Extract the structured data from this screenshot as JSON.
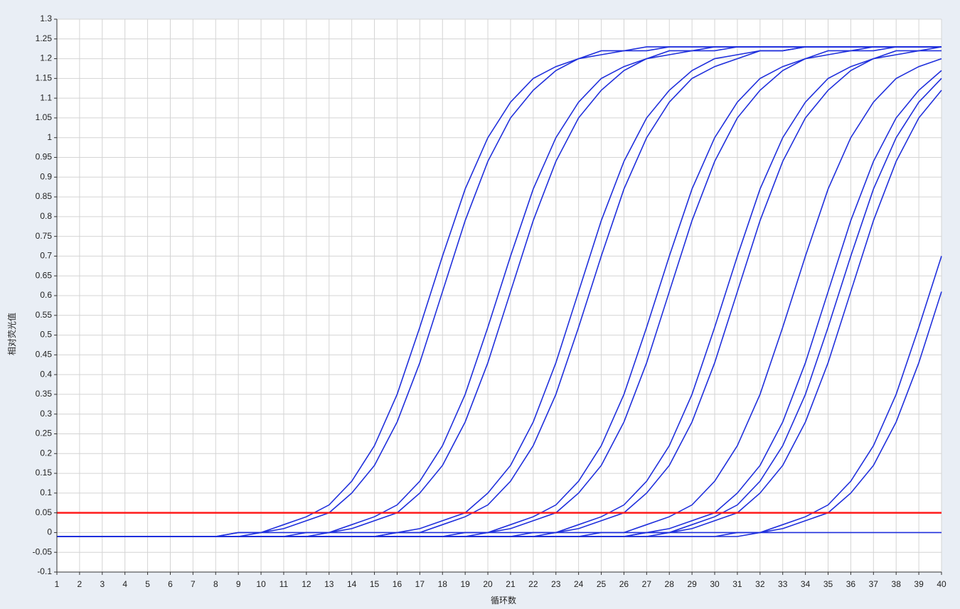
{
  "chart_data": {
    "type": "line",
    "xlabel": "循环数",
    "ylabel": "相对荧光值",
    "color": "#1f2fdc",
    "threshold": {
      "value": 0.05,
      "color": "#ff1a1a"
    },
    "grid": true,
    "xlim": [
      1,
      40
    ],
    "ylim": [
      -0.1,
      1.3
    ],
    "xticks": [
      1,
      2,
      3,
      4,
      5,
      6,
      7,
      8,
      9,
      10,
      11,
      12,
      13,
      14,
      15,
      16,
      17,
      18,
      19,
      20,
      21,
      22,
      23,
      24,
      25,
      26,
      27,
      28,
      29,
      30,
      31,
      32,
      33,
      34,
      35,
      36,
      37,
      38,
      39,
      40
    ],
    "yticks": [
      -0.1,
      -0.05,
      0,
      0.05,
      0.1,
      0.15,
      0.2,
      0.25,
      0.3,
      0.35,
      0.4,
      0.45,
      0.5,
      0.55,
      0.6,
      0.65,
      0.7,
      0.75,
      0.8,
      0.85,
      0.9,
      0.95,
      1,
      1.05,
      1.1,
      1.15,
      1.2,
      1.25,
      1.3
    ],
    "x": [
      1,
      2,
      3,
      4,
      5,
      6,
      7,
      8,
      9,
      10,
      11,
      12,
      13,
      14,
      15,
      16,
      17,
      18,
      19,
      20,
      21,
      22,
      23,
      24,
      25,
      26,
      27,
      28,
      29,
      30,
      31,
      32,
      33,
      34,
      35,
      36,
      37,
      38,
      39,
      40
    ],
    "series": [
      {
        "values": [
          -0.01,
          -0.01,
          -0.01,
          -0.01,
          -0.01,
          -0.01,
          -0.01,
          -0.01,
          0,
          0,
          0.02,
          0.04,
          0.07,
          0.13,
          0.22,
          0.35,
          0.52,
          0.7,
          0.87,
          1.0,
          1.09,
          1.15,
          1.18,
          1.2,
          1.22,
          1.22,
          1.23,
          1.23,
          1.23,
          1.23,
          1.23,
          1.23,
          1.23,
          1.23,
          1.23,
          1.23,
          1.23,
          1.23,
          1.23,
          1.23
        ]
      },
      {
        "values": [
          -0.01,
          -0.01,
          -0.01,
          -0.01,
          -0.01,
          -0.01,
          -0.01,
          -0.01,
          -0.01,
          0,
          0.01,
          0.03,
          0.05,
          0.1,
          0.17,
          0.28,
          0.43,
          0.61,
          0.79,
          0.94,
          1.05,
          1.12,
          1.17,
          1.2,
          1.21,
          1.22,
          1.22,
          1.23,
          1.23,
          1.23,
          1.23,
          1.23,
          1.23,
          1.23,
          1.23,
          1.23,
          1.23,
          1.23,
          1.23,
          1.23
        ]
      },
      {
        "values": [
          -0.01,
          -0.01,
          -0.01,
          -0.01,
          -0.01,
          -0.01,
          -0.01,
          -0.01,
          -0.01,
          -0.01,
          -0.01,
          0,
          0,
          0.02,
          0.04,
          0.07,
          0.13,
          0.22,
          0.35,
          0.52,
          0.7,
          0.87,
          1.0,
          1.09,
          1.15,
          1.18,
          1.2,
          1.22,
          1.22,
          1.23,
          1.23,
          1.23,
          1.23,
          1.23,
          1.23,
          1.23,
          1.23,
          1.23,
          1.23,
          1.23
        ]
      },
      {
        "values": [
          -0.01,
          -0.01,
          -0.01,
          -0.01,
          -0.01,
          -0.01,
          -0.01,
          -0.01,
          -0.01,
          -0.01,
          -0.01,
          -0.01,
          0,
          0.01,
          0.03,
          0.05,
          0.1,
          0.17,
          0.28,
          0.43,
          0.61,
          0.79,
          0.94,
          1.05,
          1.12,
          1.17,
          1.2,
          1.21,
          1.22,
          1.22,
          1.23,
          1.23,
          1.23,
          1.23,
          1.23,
          1.23,
          1.23,
          1.23,
          1.23,
          1.23
        ]
      },
      {
        "values": [
          -0.01,
          -0.01,
          -0.01,
          -0.01,
          -0.01,
          -0.01,
          -0.01,
          -0.01,
          -0.01,
          -0.01,
          -0.01,
          -0.01,
          -0.01,
          -0.01,
          -0.01,
          0,
          0.01,
          0.03,
          0.05,
          0.1,
          0.17,
          0.28,
          0.43,
          0.61,
          0.79,
          0.94,
          1.05,
          1.12,
          1.17,
          1.2,
          1.21,
          1.22,
          1.22,
          1.23,
          1.23,
          1.23,
          1.23,
          1.23,
          1.23,
          1.23
        ]
      },
      {
        "values": [
          -0.01,
          -0.01,
          -0.01,
          -0.01,
          -0.01,
          -0.01,
          -0.01,
          -0.01,
          -0.01,
          -0.01,
          -0.01,
          -0.01,
          -0.01,
          -0.01,
          -0.01,
          0,
          0,
          0.02,
          0.04,
          0.07,
          0.13,
          0.22,
          0.35,
          0.52,
          0.7,
          0.87,
          1.0,
          1.09,
          1.15,
          1.18,
          1.2,
          1.22,
          1.22,
          1.23,
          1.23,
          1.23,
          1.23,
          1.23,
          1.23,
          1.23
        ]
      },
      {
        "values": [
          -0.01,
          -0.01,
          -0.01,
          -0.01,
          -0.01,
          -0.01,
          -0.01,
          -0.01,
          -0.01,
          -0.01,
          -0.01,
          -0.01,
          -0.01,
          -0.01,
          -0.01,
          -0.01,
          -0.01,
          -0.01,
          0,
          0,
          0.02,
          0.04,
          0.07,
          0.13,
          0.22,
          0.35,
          0.52,
          0.7,
          0.87,
          1.0,
          1.09,
          1.15,
          1.18,
          1.2,
          1.22,
          1.22,
          1.23,
          1.23,
          1.23,
          1.23
        ]
      },
      {
        "values": [
          -0.01,
          -0.01,
          -0.01,
          -0.01,
          -0.01,
          -0.01,
          -0.01,
          -0.01,
          -0.01,
          -0.01,
          -0.01,
          -0.01,
          -0.01,
          -0.01,
          -0.01,
          -0.01,
          -0.01,
          -0.01,
          -0.01,
          0,
          0.01,
          0.03,
          0.05,
          0.1,
          0.17,
          0.28,
          0.43,
          0.61,
          0.79,
          0.94,
          1.05,
          1.12,
          1.17,
          1.2,
          1.21,
          1.22,
          1.22,
          1.23,
          1.23,
          1.23
        ]
      },
      {
        "values": [
          -0.01,
          -0.01,
          -0.01,
          -0.01,
          -0.01,
          -0.01,
          -0.01,
          -0.01,
          -0.01,
          -0.01,
          -0.01,
          -0.01,
          -0.01,
          -0.01,
          -0.01,
          -0.01,
          -0.01,
          -0.01,
          -0.01,
          -0.01,
          -0.01,
          0,
          0,
          0.02,
          0.04,
          0.07,
          0.13,
          0.22,
          0.35,
          0.52,
          0.7,
          0.87,
          1.0,
          1.09,
          1.15,
          1.18,
          1.2,
          1.22,
          1.22,
          1.23
        ]
      },
      {
        "values": [
          -0.01,
          -0.01,
          -0.01,
          -0.01,
          -0.01,
          -0.01,
          -0.01,
          -0.01,
          -0.01,
          -0.01,
          -0.01,
          -0.01,
          -0.01,
          -0.01,
          -0.01,
          -0.01,
          -0.01,
          -0.01,
          -0.01,
          -0.01,
          -0.01,
          -0.01,
          0,
          0.01,
          0.03,
          0.05,
          0.1,
          0.17,
          0.28,
          0.43,
          0.61,
          0.79,
          0.94,
          1.05,
          1.12,
          1.17,
          1.2,
          1.21,
          1.22,
          1.22
        ]
      },
      {
        "values": [
          -0.01,
          -0.01,
          -0.01,
          -0.01,
          -0.01,
          -0.01,
          -0.01,
          -0.01,
          -0.01,
          -0.01,
          -0.01,
          -0.01,
          -0.01,
          -0.01,
          -0.01,
          -0.01,
          -0.01,
          -0.01,
          -0.01,
          -0.01,
          -0.01,
          -0.01,
          -0.01,
          -0.01,
          0,
          0,
          0.02,
          0.04,
          0.07,
          0.13,
          0.22,
          0.35,
          0.52,
          0.7,
          0.87,
          1.0,
          1.09,
          1.15,
          1.18,
          1.2
        ]
      },
      {
        "values": [
          -0.01,
          -0.01,
          -0.01,
          -0.01,
          -0.01,
          -0.01,
          -0.01,
          -0.01,
          -0.01,
          -0.01,
          -0.01,
          -0.01,
          -0.01,
          -0.01,
          -0.01,
          -0.01,
          -0.01,
          -0.01,
          -0.01,
          -0.01,
          -0.01,
          -0.01,
          -0.01,
          -0.01,
          -0.01,
          -0.01,
          0,
          0.01,
          0.03,
          0.05,
          0.1,
          0.17,
          0.28,
          0.43,
          0.61,
          0.79,
          0.94,
          1.05,
          1.12,
          1.17
        ]
      },
      {
        "values": [
          -0.01,
          -0.01,
          -0.01,
          -0.01,
          -0.01,
          -0.01,
          -0.01,
          -0.01,
          -0.01,
          -0.01,
          -0.01,
          -0.01,
          -0.01,
          -0.01,
          -0.01,
          -0.01,
          -0.01,
          -0.01,
          -0.01,
          -0.01,
          -0.01,
          -0.01,
          -0.01,
          -0.01,
          -0.01,
          -0.01,
          0,
          0,
          0.02,
          0.04,
          0.07,
          0.13,
          0.22,
          0.35,
          0.52,
          0.7,
          0.87,
          1.0,
          1.09,
          1.15
        ]
      },
      {
        "values": [
          -0.01,
          -0.01,
          -0.01,
          -0.01,
          -0.01,
          -0.01,
          -0.01,
          -0.01,
          -0.01,
          -0.01,
          -0.01,
          -0.01,
          -0.01,
          -0.01,
          -0.01,
          -0.01,
          -0.01,
          -0.01,
          -0.01,
          -0.01,
          -0.01,
          -0.01,
          -0.01,
          -0.01,
          -0.01,
          -0.01,
          -0.01,
          0,
          0.01,
          0.03,
          0.05,
          0.1,
          0.17,
          0.28,
          0.43,
          0.61,
          0.79,
          0.94,
          1.05,
          1.12
        ]
      },
      {
        "values": [
          -0.01,
          -0.01,
          -0.01,
          -0.01,
          -0.01,
          -0.01,
          -0.01,
          -0.01,
          -0.01,
          -0.01,
          -0.01,
          -0.01,
          -0.01,
          -0.01,
          -0.01,
          -0.01,
          -0.01,
          -0.01,
          -0.01,
          -0.01,
          -0.01,
          -0.01,
          -0.01,
          -0.01,
          -0.01,
          -0.01,
          -0.01,
          -0.01,
          -0.01,
          -0.01,
          0,
          0,
          0.02,
          0.04,
          0.07,
          0.13,
          0.22,
          0.35,
          0.52,
          0.7
        ]
      },
      {
        "values": [
          -0.01,
          -0.01,
          -0.01,
          -0.01,
          -0.01,
          -0.01,
          -0.01,
          -0.01,
          -0.01,
          -0.01,
          -0.01,
          -0.01,
          -0.01,
          -0.01,
          -0.01,
          -0.01,
          -0.01,
          -0.01,
          -0.01,
          -0.01,
          -0.01,
          -0.01,
          -0.01,
          -0.01,
          -0.01,
          -0.01,
          -0.01,
          -0.01,
          -0.01,
          -0.01,
          -0.01,
          0,
          0.01,
          0.03,
          0.05,
          0.1,
          0.17,
          0.28,
          0.43,
          0.61
        ]
      },
      {
        "values": [
          -0.01,
          -0.01,
          -0.01,
          -0.01,
          -0.01,
          -0.01,
          -0.01,
          -0.01,
          0,
          0,
          0,
          0,
          0,
          0,
          0,
          0,
          0,
          0,
          0,
          0,
          0,
          0,
          0,
          0,
          0,
          0,
          0,
          0,
          0,
          0,
          0,
          0,
          0,
          0,
          0,
          0,
          0,
          0,
          0,
          0
        ]
      }
    ]
  }
}
